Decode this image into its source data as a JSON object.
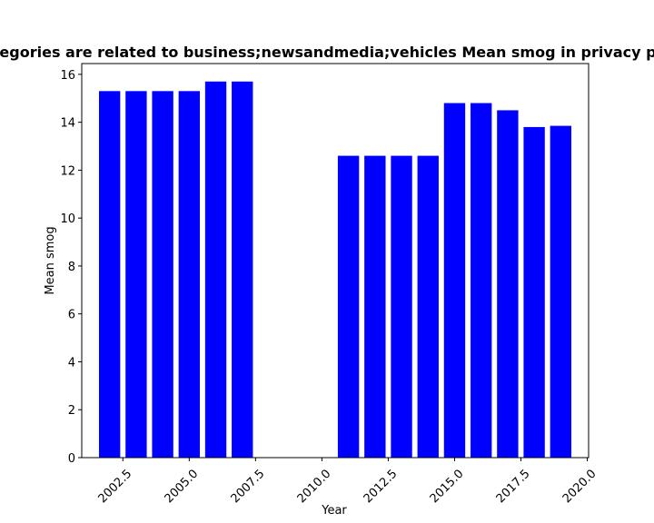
{
  "chart_data": {
    "type": "bar",
    "title": "ategories are related to business;newsandmedia;vehicles Mean smog in privacy pol",
    "xlabel": "Year",
    "ylabel": "Mean smog",
    "x": [
      2002,
      2003,
      2004,
      2005,
      2006,
      2007,
      2011,
      2012,
      2013,
      2014,
      2015,
      2016,
      2017,
      2018,
      2019
    ],
    "values": [
      15.3,
      15.3,
      15.3,
      15.3,
      15.7,
      15.7,
      12.6,
      12.6,
      12.6,
      12.6,
      14.8,
      14.8,
      14.5,
      13.8,
      13.85
    ],
    "bar_width": 0.8,
    "xlim": [
      2000.95,
      2020.05
    ],
    "ylim": [
      0,
      16.45
    ],
    "xticks": [
      2002.5,
      2005.0,
      2007.5,
      2010.0,
      2012.5,
      2015.0,
      2017.5,
      2020.0
    ],
    "xtick_labels": [
      "2002.5",
      "2005.0",
      "2007.5",
      "2010.0",
      "2012.5",
      "2015.0",
      "2017.5",
      "2020.0"
    ],
    "yticks": [
      0,
      2,
      4,
      6,
      8,
      10,
      12,
      14,
      16
    ],
    "ytick_labels": [
      "0",
      "2",
      "4",
      "6",
      "8",
      "10",
      "12",
      "14",
      "16"
    ],
    "bar_color": "#0000ff",
    "grid": false,
    "legend": "none"
  }
}
